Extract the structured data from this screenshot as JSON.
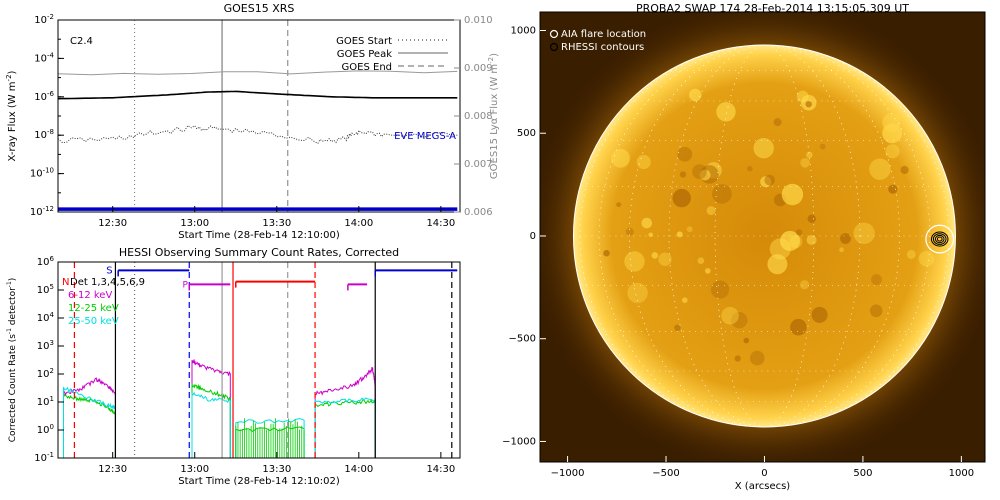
{
  "chart_data": [
    {
      "type": "line",
      "title": "GOES15 XRS",
      "flare_class": "C2.4",
      "xlabel": "Start Time (28-Feb-14 12:10:00)",
      "ylabel": "X-ray Flux (W m^-2)",
      "y2label": "GOES15 Lyα Flux (W m^-2)",
      "xticks": [
        "12:30",
        "13:00",
        "13:30",
        "14:00",
        "14:30"
      ],
      "xlim_minutes": [
        12.1,
        14.6
      ],
      "yscale": "log",
      "ylim_exp": [
        -12,
        -2
      ],
      "yticks_exp": [
        -12,
        -10,
        -8,
        -6,
        -4,
        -2
      ],
      "y2lim": [
        0.006,
        0.01
      ],
      "y2ticks": [
        "0.006",
        "0.007",
        "0.008",
        "0.009",
        "0.010"
      ],
      "legend": [
        {
          "name": "GOES Start",
          "style": "dotted",
          "color": "#666666"
        },
        {
          "name": "GOES Peak",
          "style": "solid",
          "color": "#999999"
        },
        {
          "name": "GOES End",
          "style": "dashed",
          "color": "#999999"
        }
      ],
      "legend_position": "top-right",
      "annotation": "EVE MEGS-A",
      "annotation_color": "#0000cc",
      "markers_time": {
        "start": "12:38",
        "peak": "13:10",
        "end": "13:34"
      },
      "series": [
        {
          "name": "",
          "color": "#000000",
          "t": [
            "12:10",
            "12:30",
            "12:50",
            "13:05",
            "13:15",
            "13:30",
            "13:50",
            "14:05",
            "14:20",
            "14:36"
          ],
          "log10_flux": [
            -6.1,
            -6.05,
            -5.9,
            -5.75,
            -5.72,
            -5.85,
            -6.0,
            -6.05,
            -6.05,
            -6.05
          ]
        },
        {
          "name": "",
          "color": "#333333",
          "style": "dotted",
          "t": [
            "12:10",
            "12:30",
            "12:45",
            "13:00",
            "13:10",
            "13:25",
            "13:45",
            "13:55",
            "14:00",
            "14:10",
            "14:36"
          ],
          "log10_flux": [
            -8.3,
            -8.2,
            -7.9,
            -7.6,
            -7.7,
            -7.9,
            -8.3,
            -8.2,
            -7.8,
            -8.0,
            -8.0
          ]
        },
        {
          "name": "",
          "color": "#999999",
          "t": [
            "12:10",
            "14:36"
          ],
          "lya_flux": [
            0.00887,
            0.00893
          ]
        },
        {
          "name": "EVE MEGS-A",
          "color": "#0000cc",
          "t": [
            "12:10",
            "14:36"
          ],
          "log10_flux": [
            -11.85,
            -11.85
          ]
        }
      ]
    },
    {
      "type": "line",
      "title": "HESSI Observing Summary Count Rates, Corrected",
      "xlabel": "Start Time (28-Feb-14 12:10:02)",
      "ylabel": "Corrected Count Rate (s^-1 detector^-1)",
      "xticks": [
        "12:30",
        "13:00",
        "13:30",
        "14:00",
        "14:30"
      ],
      "yscale": "log",
      "ylim_exp": [
        -1,
        6
      ],
      "yticks_exp": [
        -1,
        0,
        1,
        2,
        3,
        4,
        5,
        6
      ],
      "legend": [
        {
          "name": "Det 1,3,4,5,6,9",
          "color": "#000000"
        },
        {
          "name": "6-12 keV",
          "color": "#cc00cc"
        },
        {
          "name": "12-25 keV",
          "color": "#00cc00"
        },
        {
          "name": "25-50 keV",
          "color": "#00e0e0"
        }
      ],
      "legend_position": "top-left",
      "markers": {
        "S": "12:31",
        "P": "12:58",
        "N": "12:17"
      },
      "vlines": [
        {
          "t": "12:16",
          "color": "#ff0000",
          "style": "dashed"
        },
        {
          "t": "12:31",
          "color": "#000000",
          "style": "solid"
        },
        {
          "t": "12:58",
          "color": "#0000ff",
          "style": "dashed"
        },
        {
          "t": "13:14",
          "color": "#ff0000",
          "style": "solid"
        },
        {
          "t": "13:44",
          "color": "#ff0000",
          "style": "dashed"
        },
        {
          "t": "14:06",
          "color": "#000000",
          "style": "solid"
        },
        {
          "t": "14:34",
          "color": "#000000",
          "style": "dashed"
        },
        {
          "t": "12:38",
          "color": "#666666",
          "style": "dotted"
        },
        {
          "t": "13:10",
          "color": "#999999",
          "style": "solid"
        },
        {
          "t": "13:34",
          "color": "#999999",
          "style": "dashed"
        }
      ],
      "flag_bars": [
        {
          "name": "S",
          "color": "#0000cc",
          "t0": "12:32",
          "t1": "12:58",
          "log10_value": 5.7
        },
        {
          "name": "S",
          "color": "#0000cc",
          "t0": "14:06",
          "t1": "14:36",
          "log10_value": 5.7
        },
        {
          "name": "P",
          "color": "#cc00cc",
          "t0": "12:58",
          "t1": "13:13",
          "log10_value": 5.2
        },
        {
          "name": "P",
          "color": "#cc00cc",
          "t0": "13:56",
          "t1": "14:03",
          "log10_value": 5.2
        },
        {
          "name": "N",
          "color": "#ff0000",
          "t0": "13:15",
          "t1": "13:44",
          "log10_value": 5.3
        }
      ],
      "series": [
        {
          "name": "6-12 keV",
          "color": "#cc00cc",
          "segments": [
            {
              "t": [
                "12:12",
                "12:18",
                "12:24",
                "12:28",
                "12:31"
              ],
              "log10": [
                1.3,
                1.45,
                1.8,
                1.6,
                1.3
              ]
            },
            {
              "t": [
                "12:59",
                "13:02",
                "13:08",
                "13:13"
              ],
              "log10": [
                2.5,
                2.3,
                2.1,
                2.0
              ]
            },
            {
              "t": [
                "13:44",
                "13:50",
                "13:58",
                "14:02",
                "14:05",
                "14:06"
              ],
              "log10": [
                1.3,
                1.4,
                1.6,
                1.9,
                2.2,
                1.6
              ]
            }
          ]
        },
        {
          "name": "12-25 keV",
          "color": "#00cc00",
          "segments": [
            {
              "t": [
                "12:12",
                "12:18",
                "12:24",
                "12:28",
                "12:31"
              ],
              "log10": [
                1.2,
                1.1,
                1.0,
                0.8,
                0.6
              ]
            },
            {
              "t": [
                "12:59",
                "13:02",
                "13:08",
                "13:13"
              ],
              "log10": [
                1.6,
                1.5,
                1.3,
                1.1
              ]
            },
            {
              "t": [
                "13:15",
                "13:40"
              ],
              "log10": [
                0.0,
                0.05
              ]
            },
            {
              "t": [
                "13:44",
                "13:52",
                "14:00",
                "14:06"
              ],
              "log10": [
                0.9,
                0.95,
                1.0,
                1.05
              ]
            }
          ]
        },
        {
          "name": "25-50 keV",
          "color": "#00e0e0",
          "segments": [
            {
              "t": [
                "12:12",
                "12:20",
                "12:28",
                "12:31"
              ],
              "log10": [
                1.5,
                1.2,
                0.9,
                0.8
              ]
            },
            {
              "t": [
                "12:59",
                "13:05",
                "13:13"
              ],
              "log10": [
                1.3,
                1.1,
                1.05
              ]
            },
            {
              "t": [
                "13:15",
                "13:40"
              ],
              "log10": [
                0.3,
                0.35
              ]
            },
            {
              "t": [
                "13:44",
                "13:55",
                "14:06"
              ],
              "log10": [
                1.0,
                1.05,
                1.1
              ]
            }
          ]
        }
      ]
    },
    {
      "type": "heatmap",
      "title": "PROBA2 SWAP 174 28-Feb-2014 13:15:05.309 UT",
      "xlabel": "X (arcsecs)",
      "ylabel": "",
      "xlim": [
        -1140,
        1120
      ],
      "ylim": [
        -1100,
        1090
      ],
      "xticks": [
        -1000,
        -500,
        0,
        500,
        1000
      ],
      "yticks": [
        1000,
        500,
        0,
        -500,
        -1000
      ],
      "solar_radius_arcsec": 970,
      "disk_color": "#e09a10",
      "background_color": "#3a1e00",
      "legend": [
        {
          "name": "AIA flare location",
          "color": "#ffffff"
        },
        {
          "name": "RHESSI contours",
          "color": "#000000"
        }
      ],
      "legend_position": "top-left",
      "flare_location_arcsec": [
        890,
        -15
      ],
      "flare_circle_radius_arcsec": 70,
      "rhessi_contour_radii_arcsec": [
        12,
        22,
        32,
        42
      ]
    }
  ]
}
